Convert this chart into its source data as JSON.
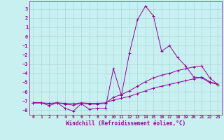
{
  "xlabel": "Windchill (Refroidissement éolien,°C)",
  "xlim": [
    -0.5,
    23.5
  ],
  "ylim": [
    -8.5,
    3.8
  ],
  "yticks": [
    3,
    2,
    1,
    0,
    -1,
    -2,
    -3,
    -4,
    -5,
    -6,
    -7,
    -8
  ],
  "xticks": [
    0,
    1,
    2,
    3,
    4,
    5,
    6,
    7,
    8,
    9,
    10,
    11,
    12,
    13,
    14,
    15,
    16,
    17,
    18,
    19,
    20,
    21,
    22,
    23
  ],
  "bg_color": "#c8f0f0",
  "grid_color": "#a8d8d8",
  "line_color": "#990099",
  "line1_x": [
    0,
    1,
    2,
    3,
    4,
    5,
    6,
    7,
    8,
    9,
    10,
    11,
    12,
    13,
    14,
    15,
    16,
    17,
    18,
    19,
    20,
    21,
    22,
    23
  ],
  "line1_y": [
    -7.2,
    -7.2,
    -7.5,
    -7.2,
    -7.8,
    -8.1,
    -7.3,
    -7.9,
    -7.8,
    -7.8,
    -3.5,
    -6.4,
    -1.8,
    1.8,
    3.3,
    2.2,
    -1.6,
    -1.0,
    -2.3,
    -3.2,
    -4.4,
    -4.5,
    -5.0,
    -5.2
  ],
  "line2_x": [
    0,
    1,
    2,
    3,
    4,
    5,
    6,
    7,
    8,
    9,
    10,
    11,
    12,
    13,
    14,
    15,
    16,
    17,
    18,
    19,
    20,
    21,
    22,
    23
  ],
  "line2_y": [
    -7.2,
    -7.2,
    -7.25,
    -7.2,
    -7.25,
    -7.3,
    -7.2,
    -7.25,
    -7.25,
    -7.2,
    -6.9,
    -6.7,
    -6.5,
    -6.2,
    -5.9,
    -5.6,
    -5.4,
    -5.2,
    -5.0,
    -4.8,
    -4.6,
    -4.4,
    -4.9,
    -5.2
  ],
  "line3_x": [
    0,
    1,
    2,
    3,
    4,
    5,
    6,
    7,
    8,
    9,
    10,
    11,
    12,
    13,
    14,
    15,
    16,
    17,
    18,
    19,
    20,
    21,
    22,
    23
  ],
  "line3_y": [
    -7.2,
    -7.2,
    -7.3,
    -7.2,
    -7.35,
    -7.45,
    -7.25,
    -7.35,
    -7.35,
    -7.25,
    -6.6,
    -6.3,
    -5.9,
    -5.4,
    -4.9,
    -4.5,
    -4.2,
    -4.0,
    -3.7,
    -3.5,
    -3.3,
    -3.2,
    -4.5,
    -5.2
  ]
}
